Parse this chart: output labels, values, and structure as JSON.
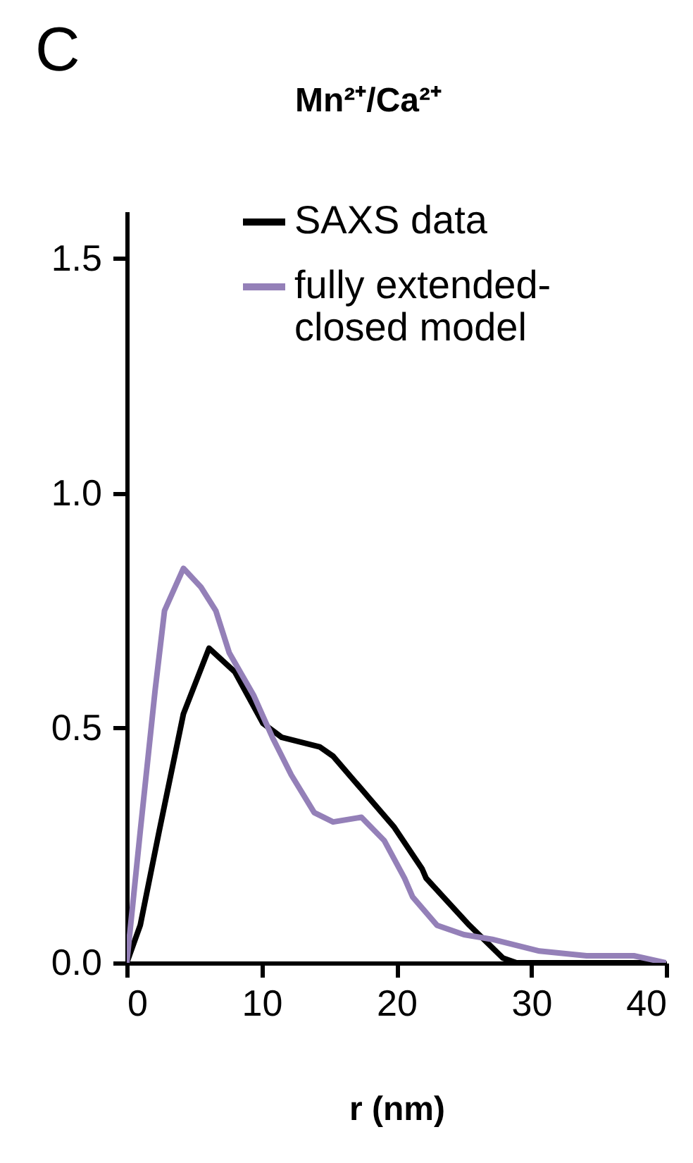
{
  "chart_data": {
    "type": "line",
    "title": "Mn²⁺/Ca²⁺",
    "xlabel": "r (nm)",
    "annotations": [
      "C"
    ],
    "xlim": [
      0,
      40
    ],
    "xticks": [
      0,
      10,
      20,
      30,
      40
    ],
    "ylim": [
      0,
      1.6
    ],
    "yticks": [
      {
        "value": 0,
        "label": "0.0"
      },
      0.5,
      {
        "value": 1,
        "label": "1.0"
      },
      1.5
    ],
    "grid": false,
    "legend": "top right",
    "marker": "none",
    "line_style": "solid",
    "series": [
      {
        "name": "SAXS data",
        "color": "#000000",
        "x": [
          0,
          1,
          2.4,
          4.2,
          6.1,
          8,
          10.1,
          11.5,
          14.3,
          15.3,
          18,
          19.8,
          21.9,
          22.2,
          25.4,
          27.9,
          28.9,
          30,
          35,
          40
        ],
        "values": [
          0,
          0.08,
          0.28,
          0.53,
          0.67,
          0.62,
          0.51,
          0.48,
          0.46,
          0.44,
          0.35,
          0.29,
          0.2,
          0.18,
          0.08,
          0.01,
          0,
          0,
          0,
          0
        ]
      },
      {
        "name": "fully extended-closed model",
        "color": "#9480b8",
        "x": [
          0,
          1,
          2.1,
          2.8,
          4.2,
          5.5,
          6.6,
          7.6,
          9.4,
          10.8,
          12.2,
          13.9,
          15.3,
          17.4,
          19.1,
          20.6,
          21.2,
          23,
          25,
          27.1,
          30.6,
          34.1,
          37.6,
          40
        ],
        "values": [
          0,
          0.28,
          0.58,
          0.75,
          0.84,
          0.8,
          0.75,
          0.66,
          0.57,
          0.48,
          0.4,
          0.32,
          0.3,
          0.31,
          0.26,
          0.18,
          0.14,
          0.08,
          0.06,
          0.05,
          0.025,
          0.015,
          0.015,
          0
        ]
      }
    ]
  }
}
